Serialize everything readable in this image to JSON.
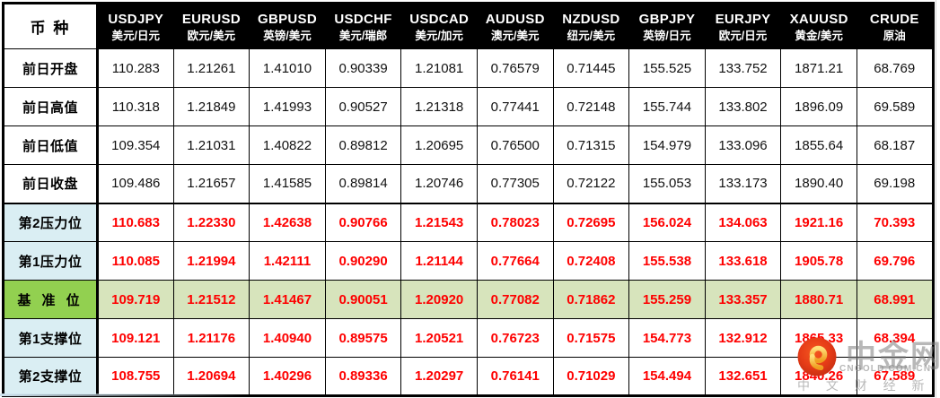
{
  "chart_data": {
    "type": "table",
    "corner_label": "币 种",
    "columns": [
      {
        "code": "USDJPY",
        "name": "美元/日元"
      },
      {
        "code": "EURUSD",
        "name": "欧元/美元"
      },
      {
        "code": "GBPUSD",
        "name": "英镑/美元"
      },
      {
        "code": "USDCHF",
        "name": "美元/瑞郎"
      },
      {
        "code": "USDCAD",
        "name": "美元/加元"
      },
      {
        "code": "AUDUSD",
        "name": "澳元/美元"
      },
      {
        "code": "NZDUSD",
        "name": "纽元/美元"
      },
      {
        "code": "GBPJPY",
        "name": "英镑/日元"
      },
      {
        "code": "EURJPY",
        "name": "欧元/日元"
      },
      {
        "code": "XAUUSD",
        "name": "黄金/美元"
      },
      {
        "code": "CRUDE",
        "name": "原油"
      }
    ],
    "rows": [
      {
        "label": "前日开盘",
        "type": "prev",
        "values": [
          "110.283",
          "1.21261",
          "1.41010",
          "0.90339",
          "1.21081",
          "0.76579",
          "0.71445",
          "155.525",
          "133.752",
          "1871.21",
          "68.769"
        ]
      },
      {
        "label": "前日高值",
        "type": "prev",
        "values": [
          "110.318",
          "1.21849",
          "1.41993",
          "0.90527",
          "1.21318",
          "0.77441",
          "0.72148",
          "155.744",
          "133.802",
          "1896.09",
          "69.589"
        ]
      },
      {
        "label": "前日低值",
        "type": "prev",
        "values": [
          "109.354",
          "1.21031",
          "1.40822",
          "0.89812",
          "1.20695",
          "0.76500",
          "0.71315",
          "154.979",
          "133.096",
          "1855.64",
          "68.187"
        ]
      },
      {
        "label": "前日收盘",
        "type": "prev",
        "values": [
          "109.486",
          "1.21657",
          "1.41585",
          "0.89814",
          "1.20746",
          "0.77305",
          "0.72122",
          "155.053",
          "133.173",
          "1890.40",
          "69.198"
        ]
      },
      {
        "label": "第2压力位",
        "type": "level",
        "section_start": true,
        "values": [
          "110.683",
          "1.22330",
          "1.42638",
          "0.90766",
          "1.21543",
          "0.78023",
          "0.72695",
          "156.024",
          "134.063",
          "1921.16",
          "70.393"
        ]
      },
      {
        "label": "第1压力位",
        "type": "level",
        "values": [
          "110.085",
          "1.21994",
          "1.42111",
          "0.90290",
          "1.21144",
          "0.77664",
          "0.72408",
          "155.538",
          "133.618",
          "1905.78",
          "69.796"
        ]
      },
      {
        "label": "基 准 位",
        "type": "pivot",
        "values": [
          "109.719",
          "1.21512",
          "1.41467",
          "0.90051",
          "1.20920",
          "0.77082",
          "0.71862",
          "155.259",
          "133.357",
          "1880.71",
          "68.991"
        ]
      },
      {
        "label": "第1支撑位",
        "type": "level",
        "values": [
          "109.121",
          "1.21176",
          "1.40940",
          "0.89575",
          "1.20521",
          "0.76723",
          "0.71575",
          "154.773",
          "132.912",
          "1865.33",
          "68.394"
        ]
      },
      {
        "label": "第2支撑位",
        "type": "level",
        "values": [
          "108.755",
          "1.20694",
          "1.40296",
          "0.89336",
          "1.20297",
          "0.76141",
          "0.71029",
          "154.494",
          "132.651",
          "1840.26",
          "67.589"
        ]
      }
    ]
  },
  "watermark": {
    "brand": "中金网",
    "domain": "CNGOLD.COM.CN",
    "tagline": "中 文 财 经 新 媒 体"
  },
  "colors": {
    "header_bg": "#000000",
    "header_text": "#ffffff",
    "label_blue": "#daeef3",
    "pivot_label_green": "#92d050",
    "pivot_row_green": "#d7e4bc",
    "value_red": "#fe0000",
    "border": "#000000",
    "logo_red": "#e63c17",
    "logo_gold": "#f5b231"
  }
}
